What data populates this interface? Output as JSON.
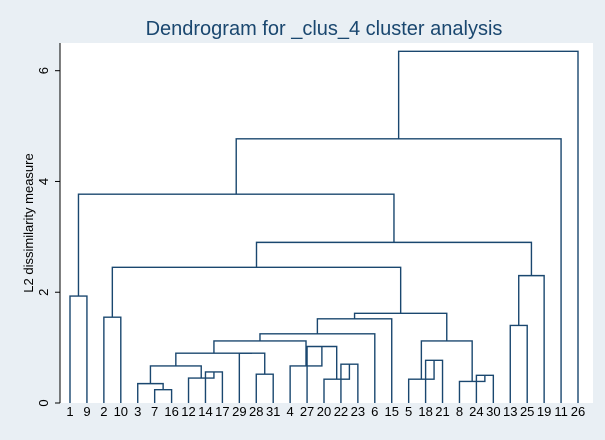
{
  "chart_data": {
    "type": "dendrogram",
    "title": "Dendrogram for _clus_4 cluster analysis",
    "xlabel": "",
    "ylabel": "L2 dissimilarity measure",
    "ylim": [
      0,
      6.5
    ],
    "yticks": [
      0,
      2,
      4,
      6
    ],
    "grid": false,
    "legend": "none",
    "colors": {
      "background": "#e9eff4",
      "plot_background": "#ffffff",
      "lines": "#1a476f",
      "title": "#1a476f"
    },
    "leaves": [
      "1",
      "9",
      "2",
      "10",
      "3",
      "7",
      "16",
      "12",
      "14",
      "17",
      "29",
      "28",
      "31",
      "4",
      "27",
      "20",
      "22",
      "23",
      "6",
      "15",
      "5",
      "18",
      "21",
      "8",
      "24",
      "30",
      "13",
      "25",
      "19",
      "11",
      "26"
    ],
    "merges": [
      {
        "a": "L:1",
        "b": "L:9",
        "h": 1.93
      },
      {
        "a": "L:2",
        "b": "L:10",
        "h": 1.55
      },
      {
        "a": "L:3",
        "b": "L:7",
        "h": 0.35
      },
      {
        "a": "M:2",
        "b": "L:16",
        "h": 0.24
      },
      {
        "a": "L:3",
        "b": "L:7",
        "h": 0.0,
        "skip": true
      },
      {
        "a": "L:14",
        "b": "L:17",
        "h": 0.56
      },
      {
        "a": "L:12",
        "b": "M:5",
        "h": 0.45
      },
      {
        "a": "L:28",
        "b": "L:31",
        "h": 0.52
      },
      {
        "a": "L:22",
        "b": "L:23",
        "h": 0.7
      },
      {
        "a": "L:20",
        "b": "M:8",
        "h": 0.43
      },
      {
        "a": "L:27",
        "b": "M:9",
        "h": 1.02
      },
      {
        "a": "L:4",
        "b": "M:10",
        "h": 0.67
      },
      {
        "a": "L:18",
        "b": "L:21",
        "h": 0.77
      },
      {
        "a": "L:5",
        "b": "M:12",
        "h": 0.43
      },
      {
        "a": "L:24",
        "b": "L:30",
        "h": 0.5
      },
      {
        "a": "L:8",
        "b": "M:14",
        "h": 0.39
      },
      {
        "a": "M:13",
        "b": "M:15",
        "h": 1.12
      },
      {
        "a": "L:13",
        "b": "L:25",
        "h": 1.4
      },
      {
        "a": "M:17",
        "b": "L:19",
        "h": 2.3
      }
    ]
  }
}
